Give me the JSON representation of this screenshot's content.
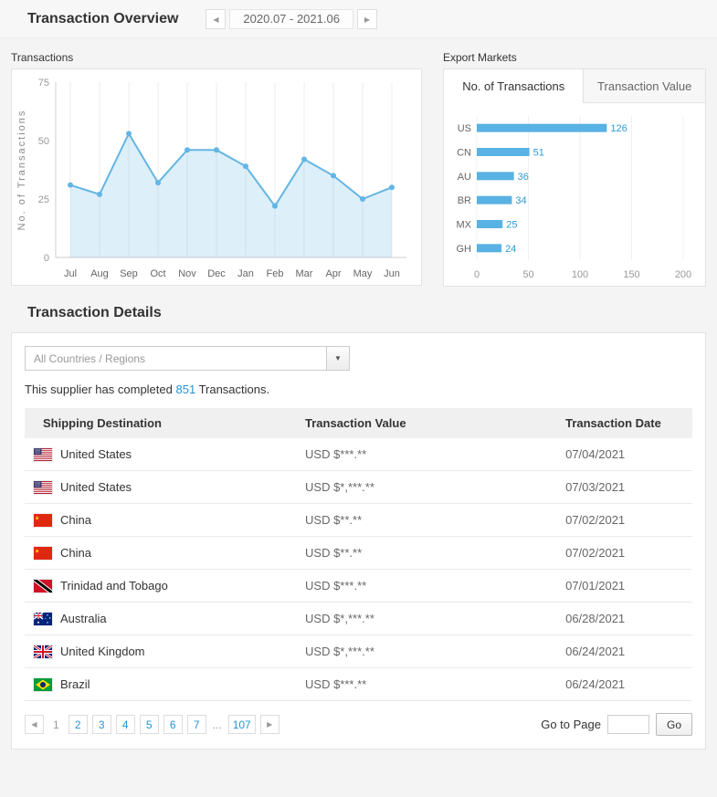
{
  "overview": {
    "title": "Transaction Overview",
    "date_range": "2020.07 - 2021.06"
  },
  "icons": {
    "prev": "◀",
    "next": "▶",
    "dropdown": "▼",
    "page_prev": "◀",
    "page_next": "▶"
  },
  "transactions_panel": {
    "label": "Transactions",
    "chart_data": {
      "type": "line",
      "categories": [
        "Jul",
        "Aug",
        "Sep",
        "Oct",
        "Nov",
        "Dec",
        "Jan",
        "Feb",
        "Mar",
        "Apr",
        "May",
        "Jun"
      ],
      "values": [
        31,
        27,
        53,
        32,
        46,
        46,
        39,
        22,
        42,
        35,
        25,
        30
      ],
      "ylabel": "No. of Transactions",
      "yticks": [
        0,
        25,
        50,
        75
      ],
      "ylim": [
        0,
        75
      ],
      "grid": "vertical",
      "line_color": "#63b5e4",
      "fill_color": "rgba(99,181,228,0.22)"
    }
  },
  "export_markets_panel": {
    "label": "Export Markets",
    "tabs": [
      {
        "label": "No. of Transactions",
        "active": true
      },
      {
        "label": "Transaction Value",
        "active": false
      }
    ],
    "chart_data": {
      "type": "bar",
      "orientation": "horizontal",
      "categories": [
        "US",
        "CN",
        "AU",
        "BR",
        "MX",
        "GH"
      ],
      "values": [
        126,
        51,
        36,
        34,
        25,
        24
      ],
      "xticks": [
        0,
        50,
        100,
        150,
        200
      ],
      "xlim": [
        0,
        200
      ],
      "bar_color": "#58b2e3",
      "value_color": "#2b9bd7"
    }
  },
  "details": {
    "title": "Transaction Details",
    "country_filter": "All Countries / Regions",
    "summary": {
      "prefix": "This supplier has completed ",
      "count": "851",
      "suffix": " Transactions."
    },
    "table": {
      "headers": [
        "Shipping Destination",
        "Transaction Value",
        "Transaction Date"
      ],
      "rows": [
        {
          "flag": "us",
          "country": "United States",
          "value": "USD $***.**",
          "date": "07/04/2021"
        },
        {
          "flag": "us",
          "country": "United States",
          "value": "USD $*,***.**",
          "date": "07/03/2021"
        },
        {
          "flag": "cn",
          "country": "China",
          "value": "USD $**.**",
          "date": "07/02/2021"
        },
        {
          "flag": "cn",
          "country": "China",
          "value": "USD $**.**",
          "date": "07/02/2021"
        },
        {
          "flag": "tt",
          "country": "Trinidad and Tobago",
          "value": "USD $***.**",
          "date": "07/01/2021"
        },
        {
          "flag": "au",
          "country": "Australia",
          "value": "USD $*,***.**",
          "date": "06/28/2021"
        },
        {
          "flag": "gb",
          "country": "United Kingdom",
          "value": "USD $*,***.**",
          "date": "06/24/2021"
        },
        {
          "flag": "br",
          "country": "Brazil",
          "value": "USD $***.**",
          "date": "06/24/2021"
        }
      ]
    },
    "pagination": {
      "current": "1",
      "pages": [
        "1",
        "2",
        "3",
        "4",
        "5",
        "6",
        "7",
        "...",
        "107"
      ],
      "goto_label": "Go to Page",
      "go_button": "Go"
    }
  },
  "colors": {
    "accent_blue": "#2b9bd7",
    "link_blue": "#2693d5"
  }
}
